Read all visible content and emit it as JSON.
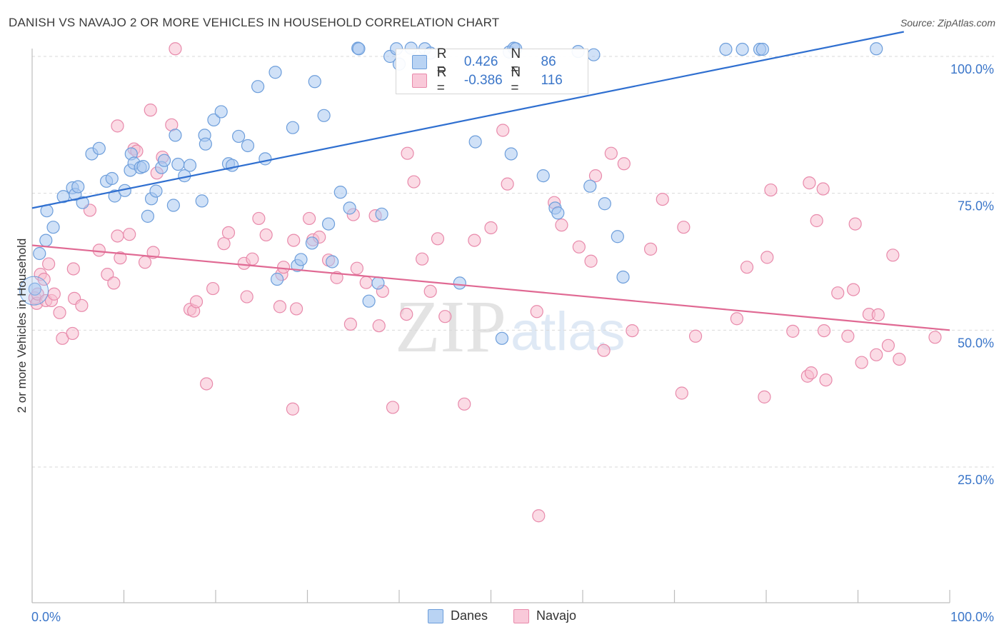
{
  "title": "DANISH VS NAVAJO 2 OR MORE VEHICLES IN HOUSEHOLD CORRELATION CHART",
  "source": "Source: ZipAtlas.com",
  "watermark": {
    "part1": "ZIP",
    "part2": "atlas"
  },
  "legend": {
    "danes": {
      "r_label": "R =",
      "r_value": "0.426",
      "n_label": "N =",
      "n_value": "86"
    },
    "navajo": {
      "r_label": "R =",
      "r_value": "-0.386",
      "n_label": "N =",
      "n_value": "116"
    }
  },
  "colors": {
    "danes_fill": "#a9c8f0",
    "danes_stroke": "#6d9edb",
    "danes_line": "#2f6fd0",
    "navajo_fill": "#f7bdd0",
    "navajo_stroke": "#e88aab",
    "navajo_line": "#e06993",
    "tick_label": "#3b76c9",
    "grid": "#d9d9d9"
  },
  "chart_data": {
    "type": "scatter",
    "title": "DANISH VS NAVAJO 2 OR MORE VEHICLES IN HOUSEHOLD CORRELATION CHART",
    "xlabel": "",
    "ylabel": "2 or more Vehicles in Household",
    "xlim": [
      0,
      100
    ],
    "ylim": [
      0,
      102
    ],
    "x_tick_labels": [
      "0.0%",
      "100.0%"
    ],
    "y_ticks": [
      25,
      50,
      75,
      100
    ],
    "y_tick_labels": [
      "25.0%",
      "50.0%",
      "75.0%",
      "100.0%"
    ],
    "grid": "horizontal dashed",
    "legend_position": "top-center",
    "series": [
      {
        "name": "Danes",
        "trend": {
          "x": [
            0,
            95
          ],
          "y": [
            72.3,
            104.5
          ]
        },
        "points": [
          [
            0.3,
            57.5
          ],
          [
            0.8,
            64
          ],
          [
            1.5,
            66.4
          ],
          [
            1.6,
            71.8
          ],
          [
            2.3,
            68.8
          ],
          [
            3.4,
            74.4
          ],
          [
            4.4,
            76
          ],
          [
            4.7,
            74.8
          ],
          [
            5,
            76.2
          ],
          [
            5.5,
            73.3
          ],
          [
            6.5,
            82.2
          ],
          [
            7.3,
            83.2
          ],
          [
            8.1,
            77.2
          ],
          [
            8.7,
            77.7
          ],
          [
            9,
            74.5
          ],
          [
            10.1,
            75.5
          ],
          [
            10.7,
            79.2
          ],
          [
            10.8,
            82.2
          ],
          [
            11.1,
            80.5
          ],
          [
            11.8,
            79.7
          ],
          [
            12.1,
            79.9
          ],
          [
            12.6,
            70.8
          ],
          [
            13,
            74
          ],
          [
            13.5,
            75.4
          ],
          [
            14.1,
            79.7
          ],
          [
            14.4,
            81
          ],
          [
            15.4,
            72.8
          ],
          [
            15.6,
            85.6
          ],
          [
            15.9,
            80.3
          ],
          [
            16.6,
            78.2
          ],
          [
            17.2,
            80.1
          ],
          [
            18.5,
            73.6
          ],
          [
            18.8,
            85.6
          ],
          [
            18.9,
            84
          ],
          [
            19.8,
            88.4
          ],
          [
            20.6,
            89.9
          ],
          [
            21.4,
            80.4
          ],
          [
            21.8,
            80.1
          ],
          [
            22.5,
            85.4
          ],
          [
            23.5,
            83.7
          ],
          [
            24.6,
            94.5
          ],
          [
            25.4,
            81.3
          ],
          [
            26.5,
            97.1
          ],
          [
            26.7,
            59.3
          ],
          [
            28.4,
            87
          ],
          [
            28.9,
            61.8
          ],
          [
            29.3,
            62.9
          ],
          [
            30.5,
            65.9
          ],
          [
            30.8,
            95.4
          ],
          [
            31.8,
            89.2
          ],
          [
            32.3,
            69.4
          ],
          [
            32.7,
            62.5
          ],
          [
            33.6,
            75.2
          ],
          [
            34.6,
            72.3
          ],
          [
            35.5,
            101.5
          ],
          [
            35.6,
            101.4
          ],
          [
            36.7,
            55.3
          ],
          [
            37.7,
            58.6
          ],
          [
            38.1,
            71.2
          ],
          [
            39,
            100
          ],
          [
            39.7,
            101.4
          ],
          [
            40,
            98.6
          ],
          [
            41.3,
            101.5
          ],
          [
            42.8,
            101.4
          ],
          [
            43.4,
            100.6
          ],
          [
            46.6,
            58.6
          ],
          [
            48.3,
            84.4
          ],
          [
            51.2,
            48.5
          ],
          [
            52,
            100.8
          ],
          [
            52.2,
            82.2
          ],
          [
            52.5,
            101.5
          ],
          [
            52.7,
            101.4
          ],
          [
            55.7,
            78.2
          ],
          [
            57,
            72.3
          ],
          [
            57.3,
            71.4
          ],
          [
            59.5,
            100.9
          ],
          [
            60.8,
            76.3
          ],
          [
            61.2,
            100.3
          ],
          [
            62.4,
            73.1
          ],
          [
            63.8,
            67.1
          ],
          [
            64.4,
            59.7
          ],
          [
            75.6,
            101.3
          ],
          [
            77.4,
            101.3
          ],
          [
            79.3,
            101.3
          ],
          [
            79.6,
            101.3
          ],
          [
            92,
            101.4
          ]
        ]
      },
      {
        "name": "Navajo",
        "trend": {
          "x": [
            0,
            100
          ],
          "y": [
            65.5,
            50
          ]
        },
        "points": [
          [
            0.3,
            55.9
          ],
          [
            0.5,
            54.9
          ],
          [
            0.6,
            56.6
          ],
          [
            0.9,
            60.2
          ],
          [
            1.3,
            59.3
          ],
          [
            1.5,
            55.4
          ],
          [
            1.8,
            62.1
          ],
          [
            2.1,
            55.4
          ],
          [
            2.4,
            56.6
          ],
          [
            3,
            53.2
          ],
          [
            3.3,
            48.5
          ],
          [
            4.4,
            49.4
          ],
          [
            4.5,
            61.2
          ],
          [
            4.6,
            55.8
          ],
          [
            5.4,
            54.5
          ],
          [
            6.3,
            71.9
          ],
          [
            7.3,
            64.6
          ],
          [
            8.2,
            60.2
          ],
          [
            8.9,
            58.6
          ],
          [
            9.3,
            87.3
          ],
          [
            9.3,
            67.2
          ],
          [
            9.6,
            63.2
          ],
          [
            10.6,
            67.5
          ],
          [
            11.1,
            83.1
          ],
          [
            11.4,
            82.7
          ],
          [
            12.3,
            62.4
          ],
          [
            12.9,
            90.2
          ],
          [
            13.2,
            64.2
          ],
          [
            13.6,
            78.7
          ],
          [
            14.2,
            81.6
          ],
          [
            15.2,
            87.5
          ],
          [
            15.6,
            101.4
          ],
          [
            17.2,
            53.8
          ],
          [
            17.6,
            53.5
          ],
          [
            17.9,
            55.2
          ],
          [
            19,
            40.2
          ],
          [
            19.7,
            57.6
          ],
          [
            20.9,
            65.8
          ],
          [
            21.4,
            67.8
          ],
          [
            23.1,
            62.2
          ],
          [
            23.4,
            56.1
          ],
          [
            24,
            63
          ],
          [
            24.7,
            70.4
          ],
          [
            25.5,
            67.4
          ],
          [
            27,
            54.3
          ],
          [
            27.2,
            60.2
          ],
          [
            27.4,
            61.5
          ],
          [
            28.4,
            35.6
          ],
          [
            28.5,
            66.4
          ],
          [
            28.8,
            53.9
          ],
          [
            30.2,
            70.4
          ],
          [
            30.6,
            66.5
          ],
          [
            31.3,
            67
          ],
          [
            32.3,
            62.8
          ],
          [
            33.2,
            59.6
          ],
          [
            34.7,
            51.1
          ],
          [
            35,
            71.1
          ],
          [
            35.4,
            61.3
          ],
          [
            36.4,
            58.7
          ],
          [
            37.4,
            70.9
          ],
          [
            37.8,
            50.8
          ],
          [
            38.2,
            57.1
          ],
          [
            39.3,
            35.9
          ],
          [
            40.8,
            52.9
          ],
          [
            40.9,
            82.3
          ],
          [
            41.6,
            77.1
          ],
          [
            42.5,
            63
          ],
          [
            43.4,
            57.1
          ],
          [
            44.2,
            66.7
          ],
          [
            45,
            52.5
          ],
          [
            47.1,
            36.5
          ],
          [
            48.2,
            66.4
          ],
          [
            50,
            68.7
          ],
          [
            51.3,
            86.5
          ],
          [
            51.8,
            76.7
          ],
          [
            55,
            53.4
          ],
          [
            55.2,
            16.1
          ],
          [
            56.9,
            73.3
          ],
          [
            57.7,
            69.2
          ],
          [
            59.6,
            65.2
          ],
          [
            60.9,
            62.6
          ],
          [
            61.4,
            78.2
          ],
          [
            62.3,
            46.3
          ],
          [
            63.1,
            82.3
          ],
          [
            64.5,
            80.4
          ],
          [
            65.4,
            49.9
          ],
          [
            67.4,
            64.8
          ],
          [
            68.7,
            73.9
          ],
          [
            70.8,
            38.5
          ],
          [
            71,
            68.8
          ],
          [
            72.3,
            48.9
          ],
          [
            76.8,
            52.1
          ],
          [
            77.9,
            61.5
          ],
          [
            79.8,
            37.8
          ],
          [
            80.1,
            63.3
          ],
          [
            80.5,
            75.6
          ],
          [
            82.9,
            49.8
          ],
          [
            84.5,
            41.6
          ],
          [
            84.7,
            76.9
          ],
          [
            84.9,
            42.2
          ],
          [
            85.5,
            70
          ],
          [
            86.2,
            75.8
          ],
          [
            86.3,
            49.9
          ],
          [
            86.5,
            40.9
          ],
          [
            87.8,
            56.8
          ],
          [
            88.9,
            48.9
          ],
          [
            89.5,
            57.4
          ],
          [
            89.7,
            69.4
          ],
          [
            90.4,
            44.1
          ],
          [
            91.2,
            52.9
          ],
          [
            92,
            45.5
          ],
          [
            92.2,
            52.8
          ],
          [
            93.3,
            47.2
          ],
          [
            93.8,
            63.7
          ],
          [
            94.5,
            44.7
          ],
          [
            98.4,
            48.7
          ]
        ]
      }
    ]
  }
}
